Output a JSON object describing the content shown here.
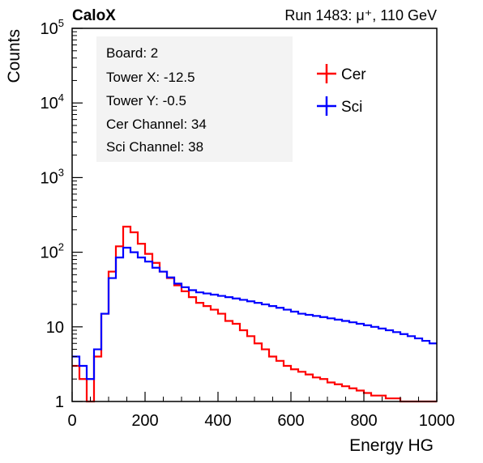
{
  "header": {
    "brand": "CaloX",
    "run_info": "Run 1483:   μ⁺, 110 GeV"
  },
  "info_box": {
    "lines": [
      "Board: 2",
      "Tower X: -12.5",
      "Tower Y: -0.5",
      "Cer Channel: 34",
      "Sci Channel: 38"
    ]
  },
  "colors": {
    "cer": "#ff0000",
    "sci": "#0000ff",
    "axis": "#000000"
  },
  "chart_data": {
    "type": "line",
    "style": "step histogram",
    "xlabel": "Energy HG",
    "ylabel": "Counts",
    "xlim": [
      0,
      1000
    ],
    "ylim": [
      1,
      100000
    ],
    "yscale": "log",
    "x_ticks": [
      "0",
      "200",
      "400",
      "600",
      "800",
      "1000"
    ],
    "y_ticks": [
      {
        "value": 1,
        "label": "1"
      },
      {
        "value": 10,
        "label": "10"
      },
      {
        "value": 100,
        "label": "10^2"
      },
      {
        "value": 1000,
        "label": "10^3"
      },
      {
        "value": 10000,
        "label": "10^4"
      },
      {
        "value": 100000,
        "label": "10^5"
      }
    ],
    "legend": {
      "position": "top-right",
      "entries": [
        "Cer",
        "Sci"
      ]
    },
    "series": [
      {
        "name": "Cer",
        "color": "#ff0000",
        "x": [
          0,
          20,
          40,
          60,
          80,
          100,
          120,
          140,
          160,
          180,
          200,
          220,
          240,
          260,
          280,
          300,
          320,
          340,
          360,
          380,
          400,
          420,
          440,
          460,
          480,
          500,
          520,
          540,
          560,
          580,
          600,
          620,
          640,
          660,
          680,
          700,
          720,
          740,
          760,
          780,
          800,
          820,
          840,
          860,
          880,
          900,
          920,
          940,
          960,
          980
        ],
        "y": [
          3,
          2,
          1,
          4,
          15,
          55,
          120,
          220,
          185,
          130,
          95,
          72,
          55,
          45,
          36,
          30,
          25,
          21,
          19,
          17,
          15,
          12,
          11,
          9,
          7.5,
          6,
          5,
          4,
          3.5,
          3,
          2.7,
          2.5,
          2.3,
          2.1,
          2,
          1.8,
          1.7,
          1.6,
          1.5,
          1.4,
          1.3,
          1.2,
          1.2,
          1.1,
          1.1,
          1,
          1,
          1,
          1,
          1
        ]
      },
      {
        "name": "Sci",
        "color": "#0000ff",
        "x": [
          0,
          20,
          40,
          60,
          80,
          100,
          120,
          140,
          160,
          180,
          200,
          220,
          240,
          260,
          280,
          300,
          320,
          340,
          360,
          380,
          400,
          420,
          440,
          460,
          480,
          500,
          520,
          540,
          560,
          580,
          600,
          620,
          640,
          660,
          680,
          700,
          720,
          740,
          760,
          780,
          800,
          820,
          840,
          860,
          880,
          900,
          920,
          940,
          960,
          980
        ],
        "y": [
          4,
          3,
          2,
          5,
          15,
          45,
          85,
          115,
          100,
          85,
          75,
          62,
          55,
          46,
          38,
          34,
          31,
          29,
          28,
          27,
          26,
          25,
          24,
          23,
          22,
          21,
          20,
          19,
          18,
          17,
          16,
          15,
          14.5,
          14,
          13.5,
          13,
          12.5,
          12,
          11.5,
          11,
          10.5,
          10,
          9.5,
          9,
          8.5,
          8,
          7.5,
          7,
          6.5,
          6
        ]
      }
    ]
  }
}
